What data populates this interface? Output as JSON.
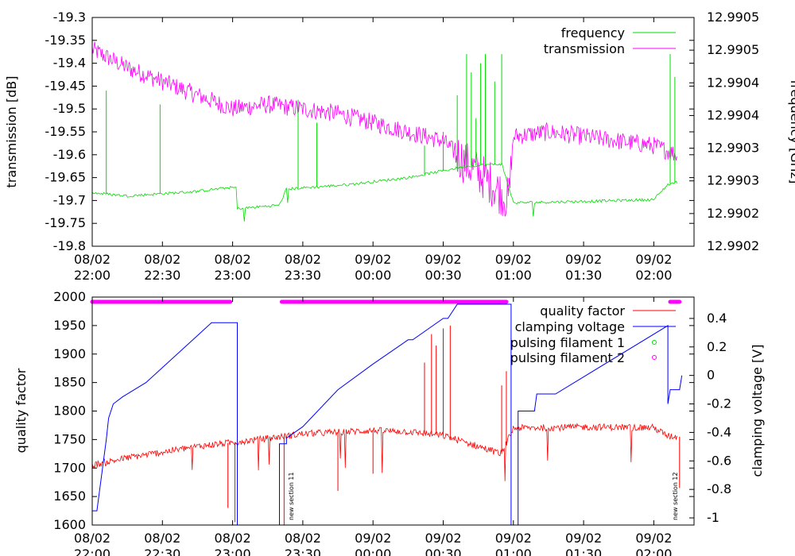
{
  "chart_data": [
    {
      "type": "line",
      "ylabel": "transmission [dB]",
      "y2label": "frequency [GHz]",
      "ylim": [
        -19.8,
        -19.3
      ],
      "yticks": [
        "-19.3",
        "-19.35",
        "-19.4",
        "-19.45",
        "-19.5",
        "-19.55",
        "-19.6",
        "-19.65",
        "-19.7",
        "-19.75",
        "-19.8"
      ],
      "y2ticks": [
        "12.9905",
        "12.9905",
        "12.9904",
        "12.9904",
        "12.9903",
        "12.9903",
        "12.9902",
        "12.9902"
      ],
      "x_ticks": [
        {
          "date": "08/02",
          "time": "22:00"
        },
        {
          "date": "08/02",
          "time": "22:30"
        },
        {
          "date": "08/02",
          "time": "23:00"
        },
        {
          "date": "08/02",
          "time": "23:30"
        },
        {
          "date": "09/02",
          "time": "00:00"
        },
        {
          "date": "09/02",
          "time": "00:30"
        },
        {
          "date": "09/02",
          "time": "01:00"
        },
        {
          "date": "09/02",
          "time": "01:30"
        },
        {
          "date": "09/02",
          "time": "02:00"
        }
      ],
      "legend_position": "top-right",
      "series": [
        {
          "name": "frequency",
          "color": "#00dd00",
          "axis": "right",
          "x": [
            "22:00",
            "22:15",
            "22:45",
            "22:58",
            "23:02",
            "23:20",
            "23:23",
            "23:50",
            "00:15",
            "00:40",
            "00:55",
            "01:00",
            "01:30",
            "02:00",
            "02:06",
            "02:10"
          ],
          "y": [
            -19.683,
            -19.69,
            -19.68,
            -19.672,
            -19.718,
            -19.71,
            -19.675,
            -19.665,
            -19.65,
            -19.625,
            -19.62,
            -19.705,
            -19.702,
            -19.698,
            -19.665,
            -19.66
          ]
        },
        {
          "name": "transmission",
          "color": "#ff00ff",
          "axis": "left",
          "x": [
            "22:00",
            "22:15",
            "22:30",
            "22:45",
            "23:00",
            "23:15",
            "23:30",
            "23:45",
            "00:00",
            "00:15",
            "00:30",
            "00:40",
            "00:50",
            "00:58",
            "01:00",
            "01:15",
            "01:30",
            "01:45",
            "02:00",
            "02:10"
          ],
          "y": [
            -19.37,
            -19.41,
            -19.44,
            -19.47,
            -19.5,
            -19.49,
            -19.5,
            -19.51,
            -19.53,
            -19.55,
            -19.57,
            -19.62,
            -19.66,
            -19.7,
            -19.56,
            -19.55,
            -19.56,
            -19.57,
            -19.58,
            -19.6
          ]
        }
      ]
    },
    {
      "type": "line",
      "ylabel": "quality factor",
      "y2label": "clamping voltage [V]",
      "ylim": [
        1600,
        2000
      ],
      "y2lim": [
        -1.05,
        0.55
      ],
      "yticks": [
        "2000",
        "1950",
        "1900",
        "1850",
        "1800",
        "1750",
        "1700",
        "1650",
        "1600"
      ],
      "y2ticks": [
        "0.4",
        "0.2",
        "0",
        "-0.2",
        "-0.4",
        "-0.6",
        "-0.8",
        "-1"
      ],
      "x_ticks": [
        {
          "date": "08/02",
          "time": "22:00"
        },
        {
          "date": "08/02",
          "time": "22:30"
        },
        {
          "date": "08/02",
          "time": "23:00"
        },
        {
          "date": "08/02",
          "time": "23:30"
        },
        {
          "date": "09/02",
          "time": "00:00"
        },
        {
          "date": "09/02",
          "time": "00:30"
        },
        {
          "date": "09/02",
          "time": "01:00"
        },
        {
          "date": "09/02",
          "time": "01:30"
        },
        {
          "date": "09/02",
          "time": "02:00"
        }
      ],
      "legend_position": "top-right",
      "annotations": [
        "new section 11",
        "new section 12"
      ],
      "series": [
        {
          "name": "quality factor",
          "color": "#ff0000",
          "axis": "left",
          "x": [
            "22:00",
            "22:15",
            "22:30",
            "22:45",
            "23:00",
            "23:15",
            "23:30",
            "23:45",
            "00:00",
            "00:15",
            "00:30",
            "00:45",
            "00:55",
            "01:00",
            "01:30",
            "02:00",
            "02:06",
            "02:10"
          ],
          "y": [
            1705,
            1718,
            1728,
            1738,
            1745,
            1752,
            1760,
            1763,
            1766,
            1764,
            1757,
            1738,
            1725,
            1770,
            1772,
            1771,
            1756,
            1755
          ]
        },
        {
          "name": "clamping voltage",
          "color": "#0000ff",
          "axis": "right",
          "x": [
            "22:00",
            "22:02",
            "22:06",
            "22:07",
            "22:09",
            "22:13",
            "22:23",
            "22:33",
            "22:51",
            "23:02",
            "23:02",
            "23:20",
            "23:20",
            "23:23",
            "23:23",
            "23:30",
            "23:45",
            "00:00",
            "00:15",
            "00:17",
            "00:30",
            "00:32",
            "00:36",
            "00:50",
            "00:59",
            "00:59",
            "01:02",
            "01:02",
            "01:09",
            "01:10",
            "01:18",
            "02:06",
            "02:06",
            "02:07",
            "02:11",
            "02:12"
          ],
          "y": [
            -0.95,
            -0.95,
            -0.45,
            -0.3,
            -0.2,
            -0.15,
            -0.05,
            0.1,
            0.37,
            0.37,
            -1.05,
            -1.05,
            -0.48,
            -0.48,
            -0.44,
            -0.36,
            -0.1,
            0.08,
            0.25,
            0.25,
            0.4,
            0.4,
            0.5,
            0.5,
            0.5,
            -1.05,
            -1.05,
            -0.25,
            -0.25,
            -0.13,
            -0.13,
            0.35,
            -0.2,
            -0.1,
            -0.1,
            0.0
          ]
        },
        {
          "name": "pulsing filament 1",
          "color": "#00dd00",
          "marker": "open-circle",
          "x": [],
          "y": []
        },
        {
          "name": "pulsing filament 2",
          "color": "#ff00ff",
          "marker": "open-circle",
          "segments": [
            [
              "22:00",
              "22:59"
            ],
            [
              "23:21",
              "00:57"
            ],
            [
              "02:07",
              "02:11"
            ]
          ]
        }
      ]
    }
  ]
}
